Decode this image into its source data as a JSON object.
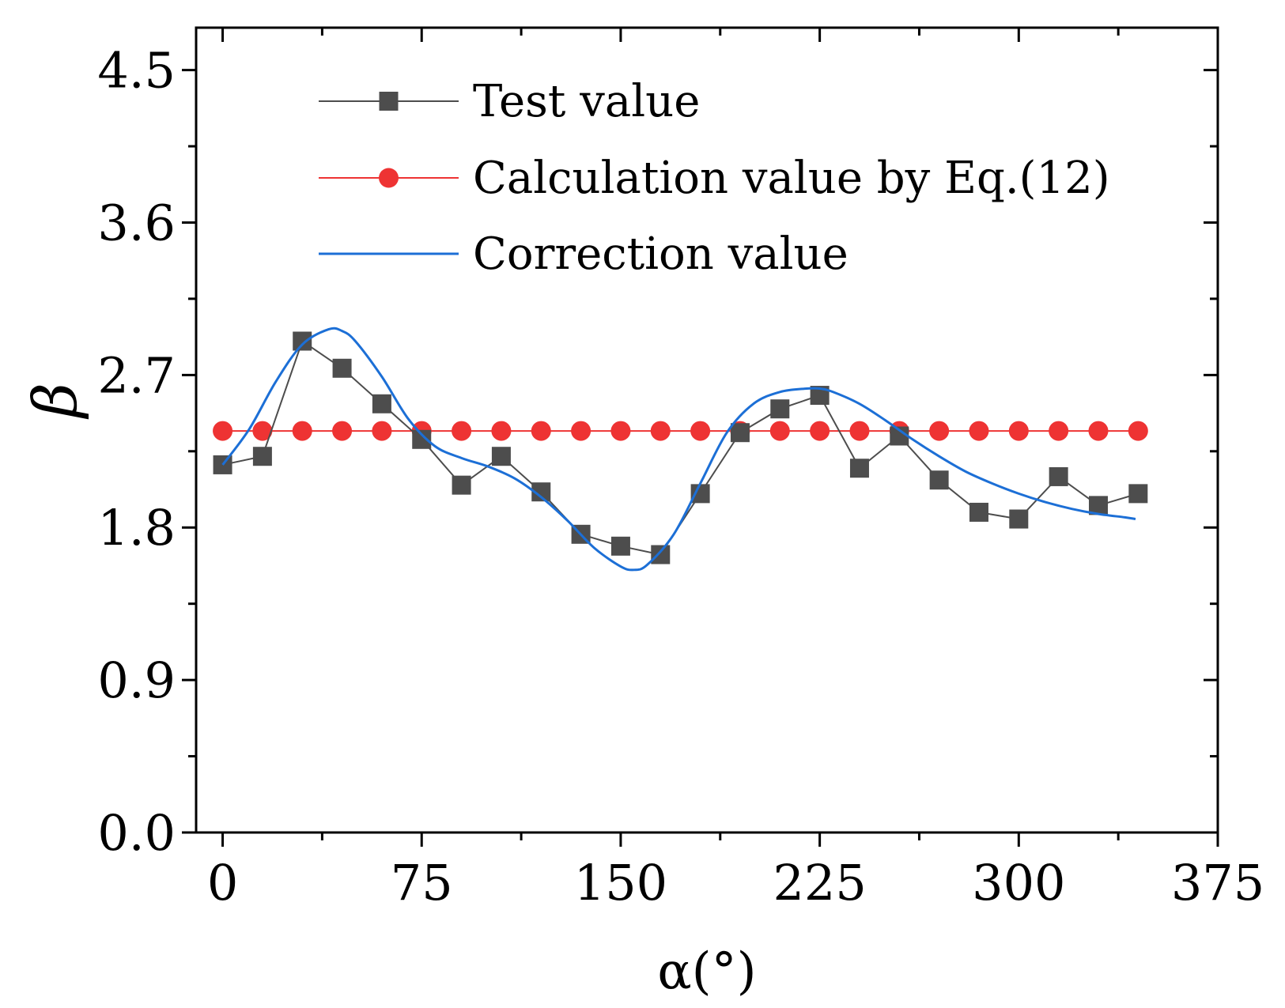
{
  "chart_data": {
    "type": "line",
    "title": "",
    "xlabel": "α(°)",
    "ylabel": "β",
    "xlim": [
      -10,
      375
    ],
    "ylim": [
      0,
      4.75
    ],
    "xticks": [
      0,
      75,
      150,
      225,
      300,
      375
    ],
    "xtick_labels": [
      "0",
      "75",
      "150",
      "225",
      "300",
      "375"
    ],
    "yticks": [
      0.0,
      0.9,
      1.8,
      2.7,
      3.6,
      4.5
    ],
    "ytick_labels": [
      "0.0",
      "0.9",
      "1.8",
      "2.7",
      "3.6",
      "4.5"
    ],
    "legend_position": "top-left",
    "series": [
      {
        "name": "Test value",
        "color": "#4d4d4d",
        "marker": "square",
        "x": [
          0,
          15,
          30,
          45,
          60,
          75,
          90,
          105,
          120,
          135,
          150,
          165,
          180,
          195,
          210,
          225,
          240,
          255,
          270,
          285,
          300,
          315,
          330,
          345
        ],
        "y": [
          2.17,
          2.22,
          2.9,
          2.74,
          2.53,
          2.32,
          2.05,
          2.22,
          2.01,
          1.76,
          1.69,
          1.64,
          2.0,
          2.36,
          2.5,
          2.58,
          2.15,
          2.34,
          2.08,
          1.89,
          1.85,
          2.1,
          1.93,
          2.0
        ]
      },
      {
        "name": "Calculation value by Eq.(12)",
        "color": "#ee3333",
        "marker": "circle",
        "x": [
          0,
          15,
          30,
          45,
          60,
          75,
          90,
          105,
          120,
          135,
          150,
          165,
          180,
          195,
          210,
          225,
          240,
          255,
          270,
          285,
          300,
          315,
          330,
          345
        ],
        "y": [
          2.37,
          2.37,
          2.37,
          2.37,
          2.37,
          2.37,
          2.37,
          2.37,
          2.37,
          2.37,
          2.37,
          2.37,
          2.37,
          2.37,
          2.37,
          2.37,
          2.37,
          2.37,
          2.37,
          2.37,
          2.37,
          2.37,
          2.37,
          2.37
        ]
      },
      {
        "name": "Correction value",
        "color": "#1c6fd6",
        "marker": "none",
        "x": [
          0,
          10,
          20,
          30,
          40,
          45,
          50,
          60,
          70,
          80,
          90,
          100,
          110,
          120,
          130,
          140,
          150,
          155,
          160,
          170,
          180,
          190,
          200,
          210,
          220,
          225,
          230,
          240,
          250,
          260,
          270,
          280,
          290,
          300,
          310,
          320,
          330,
          340,
          344
        ],
        "y": [
          2.17,
          2.38,
          2.66,
          2.88,
          2.97,
          2.96,
          2.9,
          2.69,
          2.44,
          2.28,
          2.21,
          2.16,
          2.09,
          1.98,
          1.84,
          1.68,
          1.57,
          1.55,
          1.58,
          1.76,
          2.06,
          2.36,
          2.53,
          2.6,
          2.62,
          2.62,
          2.6,
          2.53,
          2.43,
          2.32,
          2.22,
          2.13,
          2.06,
          2.0,
          1.95,
          1.91,
          1.88,
          1.86,
          1.85
        ]
      }
    ]
  }
}
